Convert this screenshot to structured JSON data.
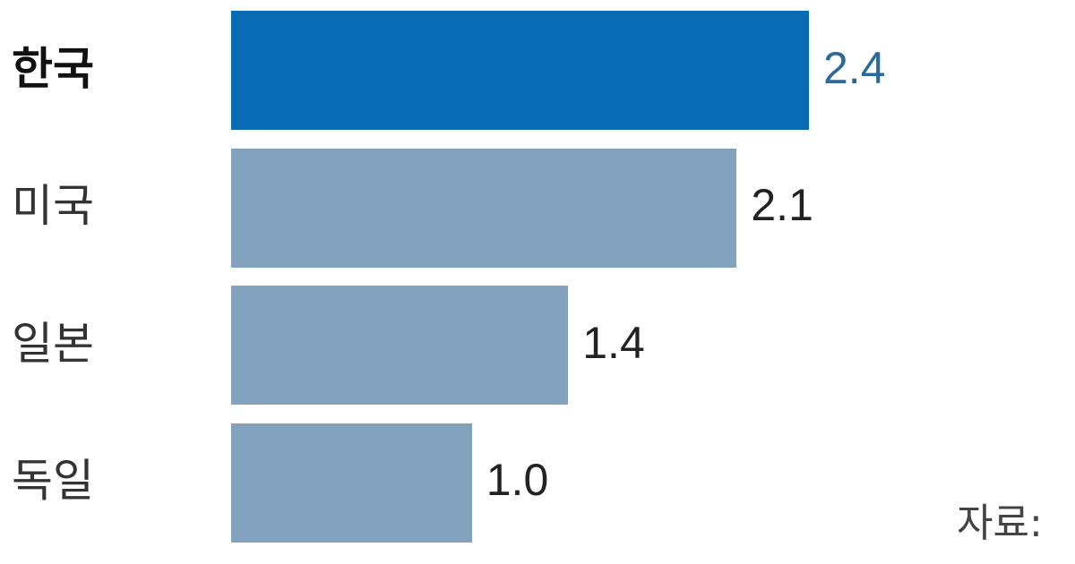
{
  "chart_data": {
    "type": "bar",
    "orientation": "horizontal",
    "categories": [
      "한국",
      "미국",
      "일본",
      "독일"
    ],
    "values": [
      2.4,
      2.1,
      1.4,
      1.0
    ],
    "value_labels": [
      "2.4",
      "2.1",
      "1.4",
      "1.0"
    ],
    "highlight_index": 0,
    "xlim": [
      0,
      2.4
    ],
    "grid": false,
    "colors": {
      "highlight": "#0a6bb5",
      "default": "#82a2bd",
      "highlight_label": "#2a6a9a",
      "label": "#222222"
    },
    "source": "자료:"
  }
}
